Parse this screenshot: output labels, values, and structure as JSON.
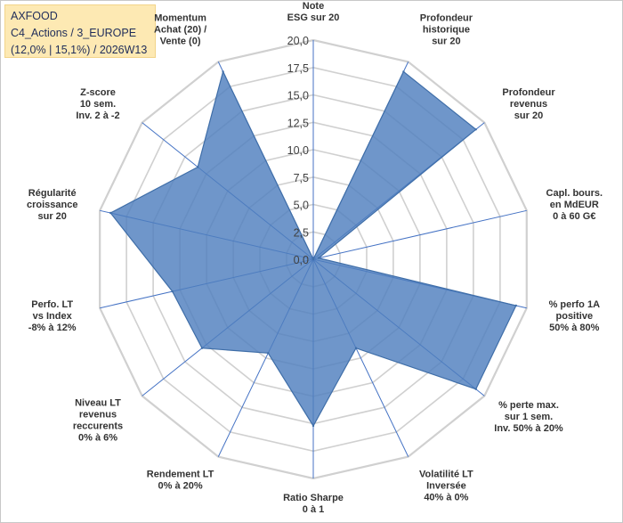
{
  "header": {
    "name": "AXFOOD",
    "portfolio": "C4_Actions / 3_EUROPE",
    "details": "(12,0% | 15,1%) / 2026W13"
  },
  "chart_data": {
    "type": "radar",
    "title": "AXFOOD",
    "rmin": 0,
    "rmax": 20,
    "tick_step": 2.5,
    "ticks": [
      "0,0",
      "2,5",
      "5,0",
      "7,5",
      "10,0",
      "12,5",
      "15,0",
      "17,5",
      "20,0"
    ],
    "grid": true,
    "colors": {
      "fill": "#4f7fbe",
      "stroke": "#3f6ea8",
      "grid": "#d0d0d0",
      "axis": "#4472c4"
    },
    "axes": [
      {
        "label": [
          "Note",
          "ESG sur 20"
        ],
        "value": 0
      },
      {
        "label": [
          "Profondeur",
          "historique",
          "sur 20"
        ],
        "value": 19
      },
      {
        "label": [
          "Profondeur",
          "revenus",
          "sur 20"
        ],
        "value": 19
      },
      {
        "label": [
          "Capl. bours.",
          "en MdEUR",
          "0 à 60 G€"
        ],
        "value": 0.5
      },
      {
        "label": [
          "% perfo 1A",
          "positive",
          "50% à 80%"
        ],
        "value": 19
      },
      {
        "label": [
          "% perte max.",
          "sur 1 sem.",
          "Inv. 50% à 20%"
        ],
        "value": 19
      },
      {
        "label": [
          "Volatilité LT",
          "Inversée",
          "40% à 0%"
        ],
        "value": 9
      },
      {
        "label": [
          "Ratio Sharpe",
          "0 à 1"
        ],
        "value": 15.2
      },
      {
        "label": [
          "Rendement LT",
          "0% à 20%"
        ],
        "value": 9.5
      },
      {
        "label": [
          "Niveau LT",
          "revenus",
          "reccurents",
          "0% à 6%"
        ],
        "value": 13
      },
      {
        "label": [
          "Perfo. LT",
          "vs Index",
          "-8% à 12%"
        ],
        "value": 13.2
      },
      {
        "label": [
          "Régularité",
          "croissance",
          "sur 20"
        ],
        "value": 19
      },
      {
        "label": [
          "Z-score",
          "10 sem.",
          "Inv. 2 à -2"
        ],
        "value": 13.5
      },
      {
        "label": [
          "Momentum",
          "Achat (20) /",
          "Vente (0)"
        ],
        "value": 19
      }
    ]
  }
}
